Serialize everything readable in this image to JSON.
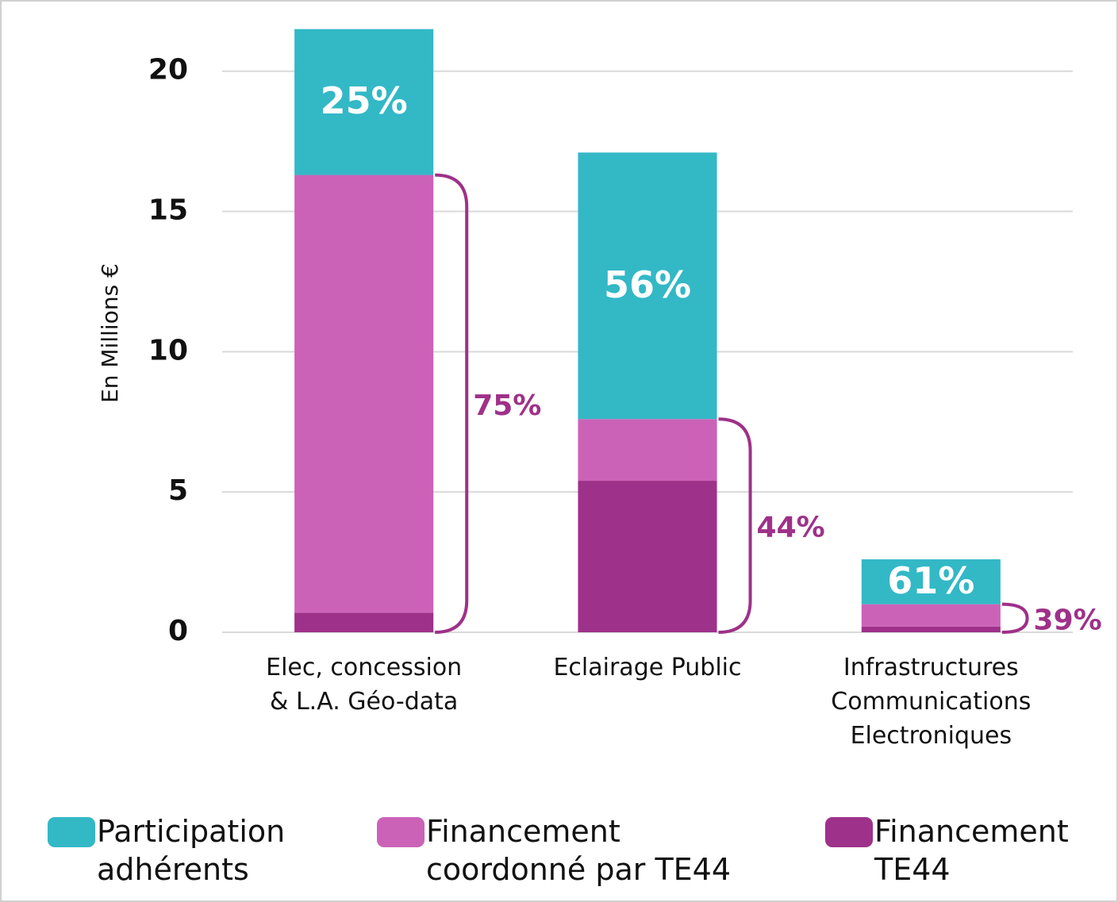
{
  "chart_data": {
    "type": "stacked_bar",
    "y_axis_label": "En Millions €",
    "categories": [
      "Elec, concession\n& L.A. Géo-data",
      "Eclairage Public",
      "Infrastructures\nCommunications\nElectroniques"
    ],
    "series": [
      {
        "name": "Financement TE44",
        "color": "#9e3189",
        "values": [
          0.7,
          5.4,
          0.2
        ]
      },
      {
        "name": "Financement coordonné par TE44",
        "color": "#cc62b8",
        "values": [
          15.6,
          2.2,
          0.8
        ]
      },
      {
        "name": "Participation adhérents",
        "color": "#33b8c6",
        "values": [
          5.2,
          9.5,
          1.6
        ]
      }
    ],
    "share_labels": [
      [
        "25%",
        "75%"
      ],
      [
        "56%",
        "44%"
      ],
      [
        "61%",
        "39%"
      ]
    ],
    "ylim": [
      0,
      22
    ],
    "yticks": [
      0,
      5,
      10,
      15,
      20
    ],
    "grid": true,
    "bracket_color": "#9e3189"
  }
}
